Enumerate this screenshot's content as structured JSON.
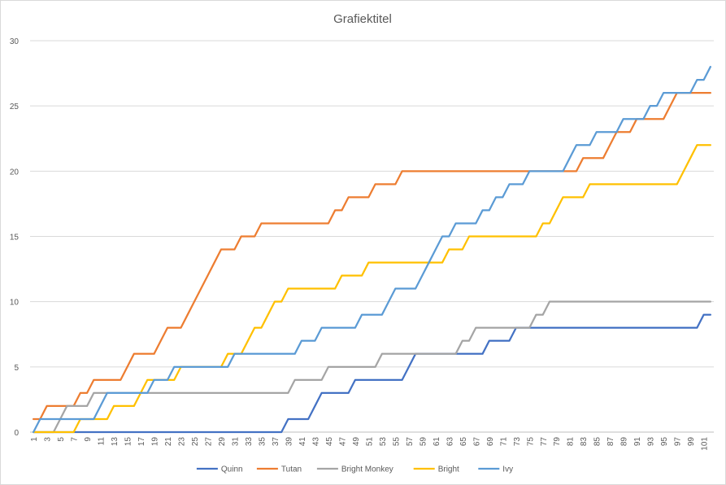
{
  "chart_data": {
    "type": "line",
    "title": "Grafiektitel",
    "xlabel": "",
    "ylabel": "",
    "x": [
      1,
      2,
      3,
      4,
      5,
      6,
      7,
      8,
      9,
      10,
      11,
      12,
      13,
      14,
      15,
      16,
      17,
      18,
      19,
      20,
      21,
      22,
      23,
      24,
      25,
      26,
      27,
      28,
      29,
      30,
      31,
      32,
      33,
      34,
      35,
      36,
      37,
      38,
      39,
      40,
      41,
      42,
      43,
      44,
      45,
      46,
      47,
      48,
      49,
      50,
      51,
      52,
      53,
      54,
      55,
      56,
      57,
      58,
      59,
      60,
      61,
      62,
      63,
      64,
      65,
      66,
      67,
      68,
      69,
      70,
      71,
      72,
      73,
      74,
      75,
      76,
      77,
      78,
      79,
      80,
      81,
      82,
      83,
      84,
      85,
      86,
      87,
      88,
      89,
      90,
      91,
      92,
      93,
      94,
      95,
      96,
      97,
      98,
      99,
      100,
      101,
      102
    ],
    "x_tick_labels": [
      "1",
      "3",
      "5",
      "7",
      "9",
      "11",
      "13",
      "15",
      "17",
      "19",
      "21",
      "23",
      "25",
      "27",
      "29",
      "31",
      "33",
      "35",
      "37",
      "39",
      "41",
      "43",
      "45",
      "47",
      "49",
      "51",
      "53",
      "55",
      "57",
      "59",
      "61",
      "63",
      "65",
      "67",
      "69",
      "71",
      "73",
      "75",
      "77",
      "79",
      "81",
      "83",
      "85",
      "87",
      "89",
      "91",
      "93",
      "95",
      "97",
      "99",
      "101"
    ],
    "ylim": [
      0,
      30
    ],
    "y_ticks": [
      0,
      5,
      10,
      15,
      20,
      25,
      30
    ],
    "grid": true,
    "legend_position": "bottom",
    "series": [
      {
        "name": "Quinn",
        "color": "#4472c4",
        "values": [
          0,
          0,
          0,
          0,
          0,
          0,
          0,
          0,
          0,
          0,
          0,
          0,
          0,
          0,
          0,
          0,
          0,
          0,
          0,
          0,
          0,
          0,
          0,
          0,
          0,
          0,
          0,
          0,
          0,
          0,
          0,
          0,
          0,
          0,
          0,
          0,
          0,
          0,
          1,
          1,
          1,
          1,
          2,
          3,
          3,
          3,
          3,
          3,
          4,
          4,
          4,
          4,
          4,
          4,
          4,
          4,
          5,
          6,
          6,
          6,
          6,
          6,
          6,
          6,
          6,
          6,
          6,
          6,
          7,
          7,
          7,
          7,
          8,
          8,
          8,
          8,
          8,
          8,
          8,
          8,
          8,
          8,
          8,
          8,
          8,
          8,
          8,
          8,
          8,
          8,
          8,
          8,
          8,
          8,
          8,
          8,
          8,
          8,
          8,
          8,
          9,
          9
        ]
      },
      {
        "name": "Tutan",
        "color": "#ed7d31",
        "values": [
          1,
          1,
          2,
          2,
          2,
          2,
          2,
          3,
          3,
          4,
          4,
          4,
          4,
          4,
          5,
          6,
          6,
          6,
          6,
          7,
          8,
          8,
          8,
          9,
          10,
          11,
          12,
          13,
          14,
          14,
          14,
          15,
          15,
          15,
          16,
          16,
          16,
          16,
          16,
          16,
          16,
          16,
          16,
          16,
          16,
          17,
          17,
          18,
          18,
          18,
          18,
          19,
          19,
          19,
          19,
          20,
          20,
          20,
          20,
          20,
          20,
          20,
          20,
          20,
          20,
          20,
          20,
          20,
          20,
          20,
          20,
          20,
          20,
          20,
          20,
          20,
          20,
          20,
          20,
          20,
          20,
          20,
          21,
          21,
          21,
          21,
          22,
          23,
          23,
          23,
          24,
          24,
          24,
          24,
          24,
          25,
          26,
          26,
          26,
          26,
          26,
          26
        ]
      },
      {
        "name": "Bright Monkey",
        "color": "#a5a5a5",
        "values": [
          0,
          0,
          0,
          0,
          1,
          2,
          2,
          2,
          2,
          3,
          3,
          3,
          3,
          3,
          3,
          3,
          3,
          3,
          3,
          3,
          3,
          3,
          3,
          3,
          3,
          3,
          3,
          3,
          3,
          3,
          3,
          3,
          3,
          3,
          3,
          3,
          3,
          3,
          3,
          4,
          4,
          4,
          4,
          4,
          5,
          5,
          5,
          5,
          5,
          5,
          5,
          5,
          6,
          6,
          6,
          6,
          6,
          6,
          6,
          6,
          6,
          6,
          6,
          6,
          7,
          7,
          8,
          8,
          8,
          8,
          8,
          8,
          8,
          8,
          8,
          9,
          9,
          10,
          10,
          10,
          10,
          10,
          10,
          10,
          10,
          10,
          10,
          10,
          10,
          10,
          10,
          10,
          10,
          10,
          10,
          10,
          10,
          10,
          10,
          10,
          10,
          10
        ]
      },
      {
        "name": "Bright",
        "color": "#ffc000",
        "values": [
          0,
          0,
          0,
          0,
          0,
          0,
          0,
          1,
          1,
          1,
          1,
          1,
          2,
          2,
          2,
          2,
          3,
          4,
          4,
          4,
          4,
          4,
          5,
          5,
          5,
          5,
          5,
          5,
          5,
          6,
          6,
          6,
          7,
          8,
          8,
          9,
          10,
          10,
          11,
          11,
          11,
          11,
          11,
          11,
          11,
          11,
          12,
          12,
          12,
          12,
          13,
          13,
          13,
          13,
          13,
          13,
          13,
          13,
          13,
          13,
          13,
          13,
          14,
          14,
          14,
          15,
          15,
          15,
          15,
          15,
          15,
          15,
          15,
          15,
          15,
          15,
          16,
          16,
          17,
          18,
          18,
          18,
          18,
          19,
          19,
          19,
          19,
          19,
          19,
          19,
          19,
          19,
          19,
          19,
          19,
          19,
          19,
          20,
          21,
          22,
          22,
          22
        ]
      },
      {
        "name": "Ivy",
        "color": "#5b9bd5",
        "values": [
          0,
          1,
          1,
          1,
          1,
          1,
          1,
          1,
          1,
          1,
          2,
          3,
          3,
          3,
          3,
          3,
          3,
          3,
          4,
          4,
          4,
          5,
          5,
          5,
          5,
          5,
          5,
          5,
          5,
          5,
          6,
          6,
          6,
          6,
          6,
          6,
          6,
          6,
          6,
          6,
          7,
          7,
          7,
          8,
          8,
          8,
          8,
          8,
          8,
          9,
          9,
          9,
          9,
          10,
          11,
          11,
          11,
          11,
          12,
          13,
          14,
          15,
          15,
          16,
          16,
          16,
          16,
          17,
          17,
          18,
          18,
          19,
          19,
          19,
          20,
          20,
          20,
          20,
          20,
          20,
          21,
          22,
          22,
          22,
          23,
          23,
          23,
          23,
          24,
          24,
          24,
          24,
          25,
          25,
          26,
          26,
          26,
          26,
          26,
          27,
          27,
          28
        ]
      }
    ]
  }
}
